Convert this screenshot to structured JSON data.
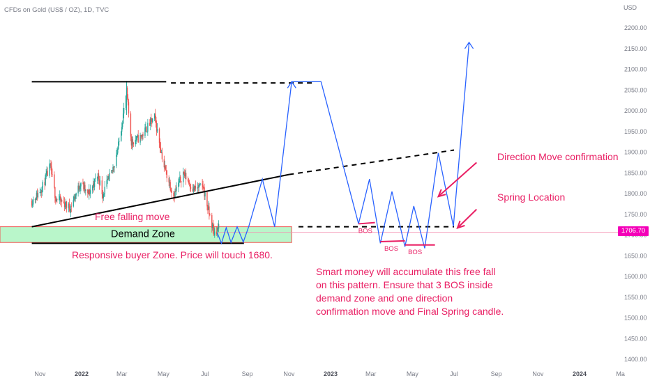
{
  "header": {
    "symbol_line": "CFDs on Gold (US$ / OZ), 1D, TVC"
  },
  "chart_data": {
    "type": "candlestick",
    "title": "CFDs on Gold (US$ / OZ), 1D, TVC",
    "y_axis": {
      "unit_label": "USD",
      "position": "right",
      "ylim": [
        1380,
        2240
      ],
      "ticks": [
        2200,
        2150,
        2100,
        2050,
        2000,
        1950,
        1900,
        1850,
        1800,
        1750,
        1700,
        1650,
        1600,
        1550,
        1500,
        1450,
        1400
      ],
      "tick_labels": [
        "2200.00",
        "2150.00",
        "2100.00",
        "2050.00",
        "2000.00",
        "1950.00",
        "1900.00",
        "1850.00",
        "1800.00",
        "1750.00",
        "1700.00",
        "1650.00",
        "1600.00",
        "1550.00",
        "1500.00",
        "1450.00",
        "1400.00"
      ]
    },
    "x_axis": {
      "range": [
        "2021-10-20",
        "2024-03-15"
      ],
      "ticks": [
        {
          "date": "2021-11-01",
          "label": "Nov"
        },
        {
          "date": "2022-01-01",
          "label": "2022",
          "bold": true
        },
        {
          "date": "2022-03-01",
          "label": "Mar"
        },
        {
          "date": "2022-05-01",
          "label": "May"
        },
        {
          "date": "2022-07-01",
          "label": "Jul"
        },
        {
          "date": "2022-09-01",
          "label": "Sep"
        },
        {
          "date": "2022-11-01",
          "label": "Nov"
        },
        {
          "date": "2023-01-01",
          "label": "2023",
          "bold": true
        },
        {
          "date": "2023-03-01",
          "label": "Mar"
        },
        {
          "date": "2023-05-01",
          "label": "May"
        },
        {
          "date": "2023-07-01",
          "label": "Jul"
        },
        {
          "date": "2023-09-01",
          "label": "Sep"
        },
        {
          "date": "2023-11-01",
          "label": "Nov"
        },
        {
          "date": "2024-01-01",
          "label": "2024",
          "bold": true
        },
        {
          "date": "2024-03-01",
          "label": "Ma"
        }
      ]
    },
    "last_price": {
      "value": 1706.7,
      "label": "1706.70",
      "color": "#f400b8"
    },
    "candles": {
      "colors": {
        "up": "#26a69a",
        "down": "#ef5350"
      },
      "price_path": [
        {
          "date": "2021-10-20",
          "price": 1782
        },
        {
          "date": "2021-10-27",
          "price": 1795
        },
        {
          "date": "2021-11-05",
          "price": 1818
        },
        {
          "date": "2021-11-16",
          "price": 1865
        },
        {
          "date": "2021-11-24",
          "price": 1790
        },
        {
          "date": "2021-12-03",
          "price": 1780
        },
        {
          "date": "2021-12-15",
          "price": 1765
        },
        {
          "date": "2021-12-31",
          "price": 1828
        },
        {
          "date": "2022-01-10",
          "price": 1795
        },
        {
          "date": "2022-01-25",
          "price": 1845
        },
        {
          "date": "2022-02-01",
          "price": 1798
        },
        {
          "date": "2022-02-15",
          "price": 1855
        },
        {
          "date": "2022-02-24",
          "price": 1915
        },
        {
          "date": "2022-03-08",
          "price": 2045
        },
        {
          "date": "2022-03-15",
          "price": 1925
        },
        {
          "date": "2022-03-28",
          "price": 1935
        },
        {
          "date": "2022-04-18",
          "price": 1985
        },
        {
          "date": "2022-05-02",
          "price": 1865
        },
        {
          "date": "2022-05-16",
          "price": 1795
        },
        {
          "date": "2022-05-30",
          "price": 1850
        },
        {
          "date": "2022-06-14",
          "price": 1810
        },
        {
          "date": "2022-06-28",
          "price": 1818
        },
        {
          "date": "2022-07-05",
          "price": 1765
        },
        {
          "date": "2022-07-14",
          "price": 1705
        },
        {
          "date": "2022-07-21",
          "price": 1718
        }
      ]
    },
    "drawings": {
      "triangle_top": {
        "from": {
          "date": "2021-10-20",
          "price": 2070
        },
        "to": {
          "date": "2022-05-05",
          "price": 2070
        }
      },
      "triangle_top_dashed": {
        "from": {
          "date": "2022-05-12",
          "price": 2067
        },
        "to": {
          "date": "2022-12-10",
          "price": 2067
        }
      },
      "rising_line": {
        "from": {
          "date": "2021-10-20",
          "price": 1720
        },
        "to": {
          "date": "2022-11-01",
          "price": 1846
        }
      },
      "rising_line_dashed": {
        "from": {
          "date": "2022-11-01",
          "price": 1846
        },
        "to": {
          "date": "2023-07-01",
          "price": 1905
        }
      },
      "support_dashed": {
        "from": {
          "date": "2022-11-15",
          "price": 1720
        },
        "to": {
          "date": "2023-07-01",
          "price": 1720
        }
      },
      "demand_zone_bottom_line": {
        "from": {
          "date": "2021-10-20",
          "price": 1680
        },
        "to": {
          "date": "2022-08-27",
          "price": 1680
        }
      },
      "demand_zone": {
        "start": "2021-10-20",
        "end": "2022-11-05",
        "top": 1720,
        "bottom": 1682,
        "label": "Demand Zone",
        "fill": "#b9f6ca",
        "border": "#ef5350"
      },
      "projection_color": "#2962ff",
      "projection_path": [
        {
          "date": "2022-07-19",
          "price": 1705
        },
        {
          "date": "2022-07-25",
          "price": 1680
        },
        {
          "date": "2022-08-01",
          "price": 1718
        },
        {
          "date": "2022-08-08",
          "price": 1682
        },
        {
          "date": "2022-08-17",
          "price": 1720
        },
        {
          "date": "2022-08-26",
          "price": 1683
        },
        {
          "date": "2022-09-03",
          "price": 1720
        },
        {
          "date": "2022-09-23",
          "price": 1835
        },
        {
          "date": "2022-10-11",
          "price": 1720
        },
        {
          "date": "2022-11-05",
          "price": 2070
        },
        {
          "date": "2022-12-18",
          "price": 2070
        },
        {
          "date": "2023-02-11",
          "price": 1727
        },
        {
          "date": "2023-02-27",
          "price": 1835
        },
        {
          "date": "2023-03-15",
          "price": 1680
        },
        {
          "date": "2023-04-01",
          "price": 1805
        },
        {
          "date": "2023-04-20",
          "price": 1672
        },
        {
          "date": "2023-05-03",
          "price": 1770
        },
        {
          "date": "2023-05-19",
          "price": 1668
        },
        {
          "date": "2023-06-08",
          "price": 1898
        },
        {
          "date": "2023-06-30",
          "price": 1721
        },
        {
          "date": "2023-07-23",
          "price": 2165
        }
      ],
      "bos_marks": [
        {
          "label": "BOS",
          "from": {
            "date": "2023-02-11",
            "price": 1727
          },
          "to": {
            "date": "2023-03-07",
            "price": 1730
          }
        },
        {
          "label": "BOS",
          "from": {
            "date": "2023-03-15",
            "price": 1684
          },
          "to": {
            "date": "2023-04-20",
            "price": 1686
          }
        },
        {
          "label": "BOS",
          "from": {
            "date": "2023-04-20",
            "price": 1676
          },
          "to": {
            "date": "2023-06-03",
            "price": 1676
          }
        }
      ],
      "arrows": [
        {
          "from": {
            "date": "2023-08-03",
            "price": 1875
          },
          "to": {
            "date": "2023-06-08",
            "price": 1793
          }
        },
        {
          "from": {
            "date": "2023-08-03",
            "price": 1762
          },
          "to": {
            "date": "2023-07-06",
            "price": 1717
          }
        }
      ]
    },
    "annotations": [
      {
        "id": "free-falling",
        "text": "Free falling move"
      },
      {
        "id": "responsive-buyer",
        "text": "Responsive buyer Zone. Price will touch 1680."
      },
      {
        "id": "direction-move",
        "text": "Direction Move confirmation"
      },
      {
        "id": "spring-location",
        "text": "Spring Location"
      },
      {
        "id": "smart-money",
        "lines": [
          "Smart money will accumulate this free fall",
          "on this pattern. Ensure that 3 BOS inside",
          "demand zone  and one direction",
          "confirmation move and Final Spring candle."
        ]
      }
    ],
    "annotation_color": "#e91e63"
  }
}
